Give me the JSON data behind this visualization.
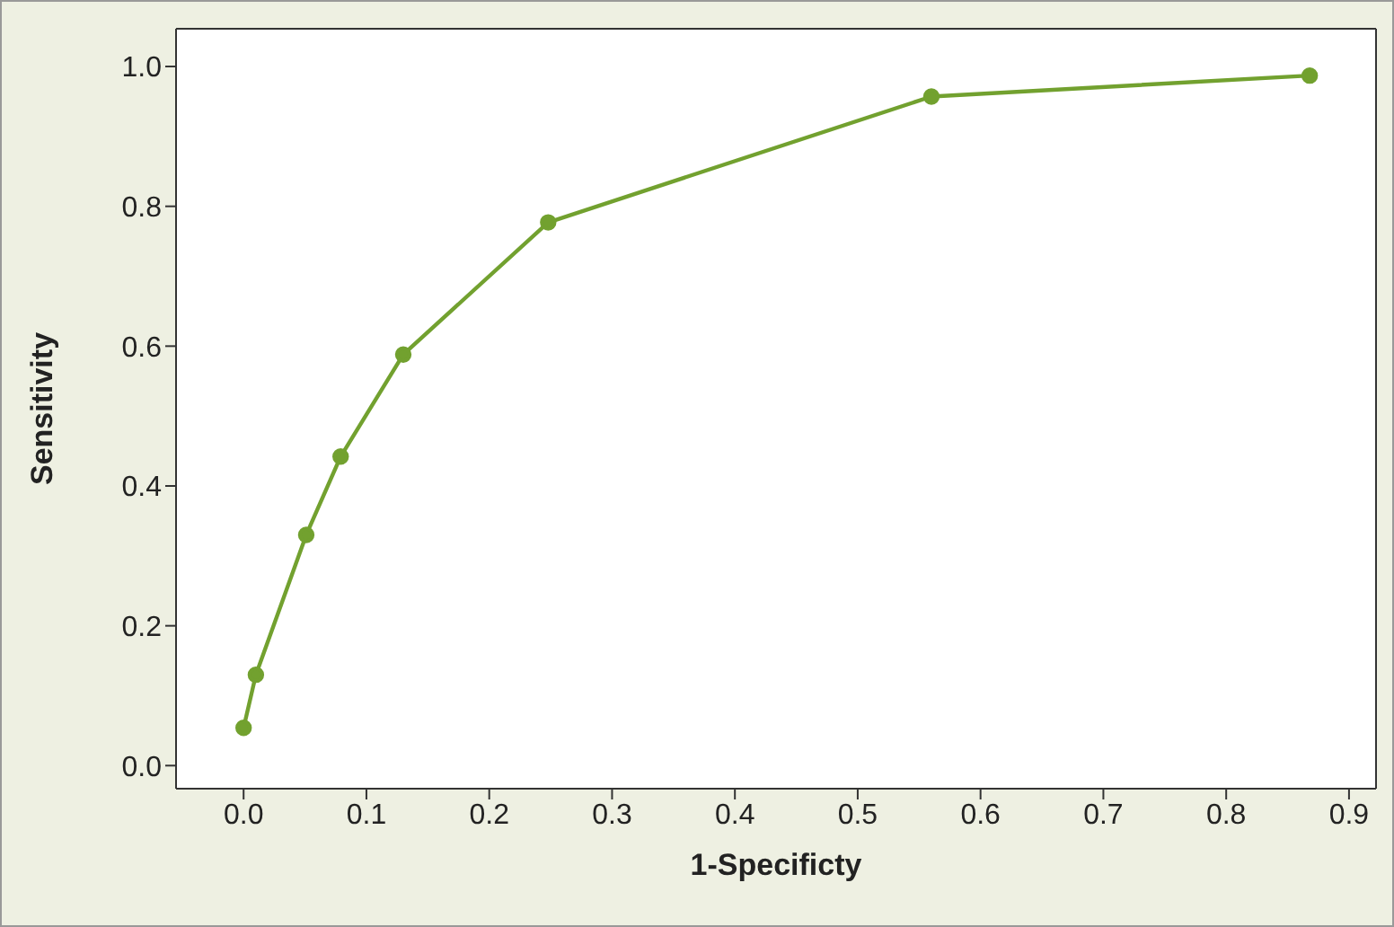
{
  "chart_data": {
    "type": "line",
    "xlabel": "1-Specificty",
    "ylabel": "Sensitivity",
    "x": [
      0.0,
      0.01,
      0.051,
      0.079,
      0.13,
      0.248,
      0.56,
      0.868
    ],
    "series": [
      {
        "color": "#72a12f",
        "values": [
          0.054,
          0.13,
          0.33,
          0.442,
          0.588,
          0.777,
          0.957,
          0.987
        ]
      }
    ],
    "xlim": [
      -0.055,
      0.922
    ],
    "xticks": [
      {
        "value": 0,
        "label": "0.0"
      },
      0.1,
      0.2,
      0.3,
      0.4,
      0.5,
      0.6,
      0.7,
      0.8,
      0.9
    ],
    "ylim": [
      -0.033,
      1.054
    ],
    "yticks": [
      {
        "value": 0,
        "label": "0.0"
      },
      0.2,
      0.4,
      0.6,
      0.8,
      {
        "value": 1,
        "label": "1.0"
      }
    ],
    "marker": "circle",
    "line_style": "solid"
  }
}
